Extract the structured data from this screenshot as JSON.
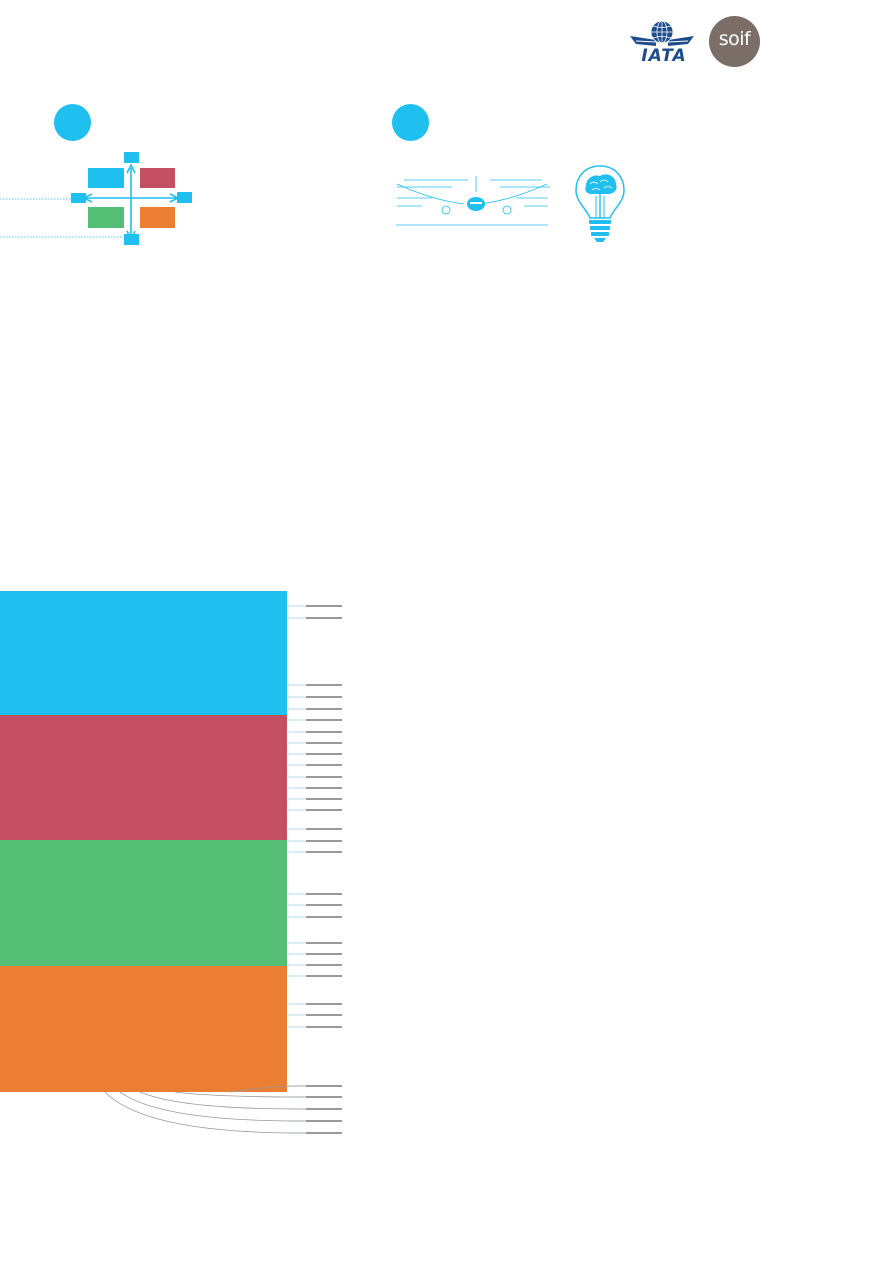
{
  "logos": {
    "iata": "IATA",
    "soif": "soif"
  },
  "colors": {
    "blue": "#1fbff0",
    "red": "#c44e62",
    "green": "#55be75",
    "orange": "#ec7e33",
    "soif_brown": "#7a6e66",
    "iata_navy": "#1e4d8c"
  },
  "icons": {
    "section_1": "matrix-quadrant-icon",
    "section_2_a": "airplane-icon",
    "section_2_b": "lightbulb-brain-icon"
  },
  "bands": [
    {
      "name": "blue",
      "color": "#1fbff0"
    },
    {
      "name": "red",
      "color": "#c44e62"
    },
    {
      "name": "green",
      "color": "#55be75"
    },
    {
      "name": "orange",
      "color": "#ec7e33"
    }
  ]
}
